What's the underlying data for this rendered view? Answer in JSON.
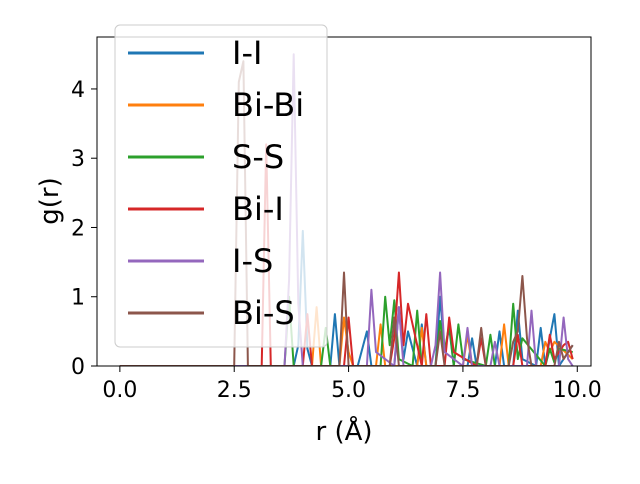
{
  "chart_data": {
    "type": "line",
    "title": "",
    "xlabel": "r (Å)",
    "ylabel": "g(r)",
    "xlim": [
      -0.5,
      10.3
    ],
    "ylim": [
      0,
      4.75
    ],
    "xticks": [
      0.0,
      2.5,
      5.0,
      7.5,
      10.0
    ],
    "xtick_labels": [
      "0.0",
      "2.5",
      "5.0",
      "7.5",
      "10.0"
    ],
    "yticks": [
      0,
      1,
      2,
      3,
      4
    ],
    "ytick_labels": [
      "0",
      "1",
      "2",
      "3",
      "4"
    ],
    "legend": "upper-left",
    "grid": false,
    "series": [
      {
        "name": "I-I",
        "color": "#1f77b4",
        "x": [
          0,
          3.8,
          3.9,
          4.0,
          4.1,
          4.2,
          4.6,
          4.7,
          4.8,
          5.2,
          5.4,
          5.5,
          6.0,
          6.1,
          6.2,
          6.3,
          6.5,
          6.6,
          6.7,
          6.9,
          7.0,
          7.1,
          7.2,
          7.3,
          7.6,
          7.7,
          7.8,
          8.2,
          8.3,
          8.4,
          8.6,
          8.7,
          8.8,
          9.1,
          9.2,
          9.3,
          9.4,
          9.5,
          9.6,
          9.9
        ],
        "y": [
          0,
          0,
          0.3,
          1.95,
          0.25,
          0,
          0,
          0.75,
          0,
          0,
          0.5,
          0,
          0,
          0.85,
          0.1,
          0.5,
          0,
          0.6,
          0,
          0,
          1.0,
          0.2,
          0.55,
          0,
          0,
          0.4,
          0,
          0,
          0.5,
          0,
          0,
          0.8,
          0.1,
          0,
          0.55,
          0,
          0.4,
          0.75,
          0,
          0.3
        ]
      },
      {
        "name": "Bi-Bi",
        "color": "#ff7f0e",
        "x": [
          0,
          4.2,
          4.3,
          4.4,
          4.8,
          4.9,
          5.0,
          5.1,
          5.6,
          5.7,
          5.8,
          6.5,
          6.6,
          6.7,
          7.5,
          7.6,
          7.7,
          8.3,
          8.4,
          8.5,
          9.2,
          9.3,
          9.4,
          9.5,
          9.9
        ],
        "y": [
          0,
          0,
          0.85,
          0,
          0,
          0.7,
          0.2,
          0,
          0,
          0.6,
          0,
          0,
          0.55,
          0,
          0,
          0.45,
          0,
          0,
          0.6,
          0,
          0,
          0.35,
          0.2,
          0.35,
          0.1
        ]
      },
      {
        "name": "S-S",
        "color": "#2ca02c",
        "x": [
          0,
          3.6,
          3.7,
          3.8,
          4.4,
          4.5,
          4.6,
          5.7,
          5.8,
          5.9,
          6.0,
          6.1,
          6.4,
          6.5,
          6.6,
          6.9,
          7.0,
          7.1,
          7.2,
          7.3,
          7.4,
          7.5,
          8.0,
          8.1,
          8.2,
          8.5,
          8.6,
          8.7,
          8.8,
          9.3,
          9.4,
          9.5,
          9.6,
          9.9
        ],
        "y": [
          0,
          0,
          1.0,
          0,
          0,
          0.55,
          0,
          0,
          1.0,
          0.3,
          0.95,
          0.1,
          0,
          0.8,
          0,
          0,
          0.65,
          0.2,
          0.6,
          0,
          0.6,
          0.1,
          0,
          0.45,
          0,
          0,
          0.9,
          0.1,
          0.4,
          0,
          0.25,
          0.05,
          0.25,
          0.2
        ]
      },
      {
        "name": "Bi-I",
        "color": "#d62728",
        "x": [
          0,
          3.1,
          3.2,
          3.3,
          4.0,
          4.1,
          4.2,
          4.9,
          5.0,
          5.1,
          5.9,
          6.0,
          6.1,
          6.2,
          6.3,
          6.6,
          6.7,
          6.8,
          7.1,
          7.2,
          7.3,
          7.8,
          7.9,
          8.0,
          8.6,
          8.7,
          8.8,
          9.3,
          9.4,
          9.5,
          9.7,
          9.8,
          9.9
        ],
        "y": [
          0,
          0,
          3.2,
          0,
          0,
          0.75,
          0,
          0,
          0.7,
          0,
          0,
          0.4,
          1.35,
          0.3,
          0.9,
          0,
          0.75,
          0,
          0,
          0.7,
          0.2,
          0,
          0.4,
          0,
          0,
          0.45,
          0,
          0,
          0.45,
          0.1,
          0.3,
          0.35,
          0.1
        ]
      },
      {
        "name": "I-S",
        "color": "#9467bd",
        "x": [
          0,
          3.6,
          3.7,
          3.8,
          3.9,
          4.0,
          5.4,
          5.5,
          5.6,
          6.0,
          6.1,
          6.2,
          6.8,
          6.9,
          7.0,
          7.1,
          7.5,
          7.6,
          7.7,
          8.1,
          8.2,
          8.3,
          8.9,
          9.0,
          9.1,
          9.6,
          9.7,
          9.8,
          9.9
        ],
        "y": [
          0,
          0,
          1.25,
          4.5,
          0.9,
          0,
          0,
          1.1,
          0.2,
          0,
          0.85,
          0,
          0,
          0.3,
          1.35,
          0.2,
          0,
          0.55,
          0,
          0,
          0.35,
          0,
          0,
          0.8,
          0,
          0,
          0.7,
          0.1,
          0
        ]
      },
      {
        "name": "Bi-S",
        "color": "#8c564b",
        "x": [
          0,
          2.5,
          2.6,
          2.7,
          2.8,
          4.8,
          4.9,
          5.0,
          5.9,
          6.0,
          6.1,
          6.9,
          7.0,
          7.1,
          7.8,
          7.9,
          8.0,
          8.5,
          8.6,
          8.7,
          8.8,
          8.9,
          9.0,
          9.5,
          9.6,
          9.7,
          9.9
        ],
        "y": [
          0,
          0,
          4.1,
          4.4,
          0,
          0,
          1.35,
          0,
          0,
          0.7,
          0,
          0,
          0.5,
          0,
          0,
          0.55,
          0,
          0,
          0.35,
          0.5,
          1.3,
          0.4,
          0,
          0,
          0.35,
          0.1,
          0.3
        ]
      }
    ]
  }
}
